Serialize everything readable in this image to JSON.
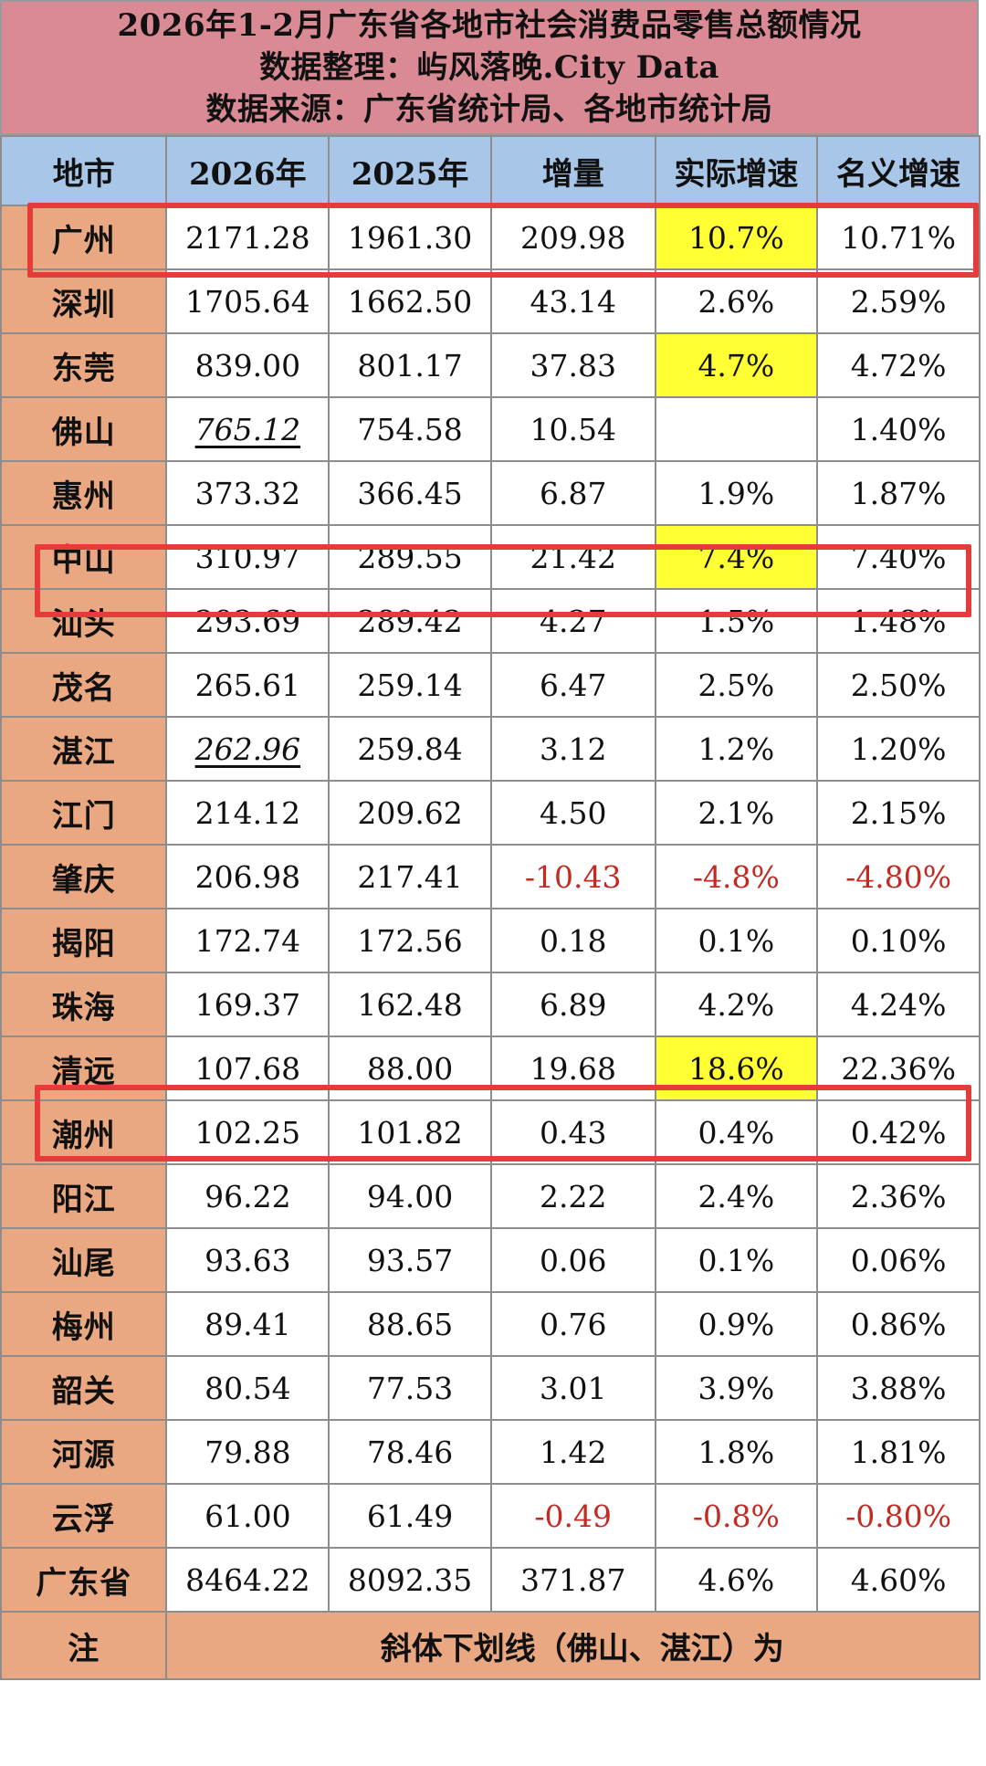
{
  "title": {
    "line1": "2026年1-2月广东省各地市社会消费品零售总额情况",
    "line2": "数据整理：屿风落晚.City Data",
    "line3": "数据来源：广东省统计局、各地市统计局"
  },
  "headers": [
    "地市",
    "2026年",
    "2025年",
    "增量",
    "实际增速",
    "名义增速"
  ],
  "rows": [
    {
      "city": "广州",
      "y2026": "2171.28",
      "y2025": "1961.30",
      "inc": "209.98",
      "real": "10.7%",
      "nominal": "10.71%"
    },
    {
      "city": "深圳",
      "y2026": "1705.64",
      "y2025": "1662.50",
      "inc": "43.14",
      "real": "2.6%",
      "nominal": "2.59%"
    },
    {
      "city": "东莞",
      "y2026": "839.00",
      "y2025": "801.17",
      "inc": "37.83",
      "real": "4.7%",
      "nominal": "4.72%"
    },
    {
      "city": "佛山",
      "y2026": "765.12",
      "y2025": "754.58",
      "inc": "10.54",
      "real": "",
      "nominal": "1.40%"
    },
    {
      "city": "惠州",
      "y2026": "373.32",
      "y2025": "366.45",
      "inc": "6.87",
      "real": "1.9%",
      "nominal": "1.87%"
    },
    {
      "city": "中山",
      "y2026": "310.97",
      "y2025": "289.55",
      "inc": "21.42",
      "real": "7.4%",
      "nominal": "7.40%"
    },
    {
      "city": "汕头",
      "y2026": "293.69",
      "y2025": "289.42",
      "inc": "4.27",
      "real": "1.5%",
      "nominal": "1.48%"
    },
    {
      "city": "茂名",
      "y2026": "265.61",
      "y2025": "259.14",
      "inc": "6.47",
      "real": "2.5%",
      "nominal": "2.50%"
    },
    {
      "city": "湛江",
      "y2026": "262.96",
      "y2025": "259.84",
      "inc": "3.12",
      "real": "1.2%",
      "nominal": "1.20%"
    },
    {
      "city": "江门",
      "y2026": "214.12",
      "y2025": "209.62",
      "inc": "4.50",
      "real": "2.1%",
      "nominal": "2.15%"
    },
    {
      "city": "肇庆",
      "y2026": "206.98",
      "y2025": "217.41",
      "inc": "-10.43",
      "real": "-4.8%",
      "nominal": "-4.80%"
    },
    {
      "city": "揭阳",
      "y2026": "172.74",
      "y2025": "172.56",
      "inc": "0.18",
      "real": "0.1%",
      "nominal": "0.10%"
    },
    {
      "city": "珠海",
      "y2026": "169.37",
      "y2025": "162.48",
      "inc": "6.89",
      "real": "4.2%",
      "nominal": "4.24%"
    },
    {
      "city": "清远",
      "y2026": "107.68",
      "y2025": "88.00",
      "inc": "19.68",
      "real": "18.6%",
      "nominal": "22.36%"
    },
    {
      "city": "潮州",
      "y2026": "102.25",
      "y2025": "101.82",
      "inc": "0.43",
      "real": "0.4%",
      "nominal": "0.42%"
    },
    {
      "city": "阳江",
      "y2026": "96.22",
      "y2025": "94.00",
      "inc": "2.22",
      "real": "2.4%",
      "nominal": "2.36%"
    },
    {
      "city": "汕尾",
      "y2026": "93.63",
      "y2025": "93.57",
      "inc": "0.06",
      "real": "0.1%",
      "nominal": "0.06%"
    },
    {
      "city": "梅州",
      "y2026": "89.41",
      "y2025": "88.65",
      "inc": "0.76",
      "real": "0.9%",
      "nominal": "0.86%"
    },
    {
      "city": "韶关",
      "y2026": "80.54",
      "y2025": "77.53",
      "inc": "3.01",
      "real": "3.9%",
      "nominal": "3.88%"
    },
    {
      "city": "河源",
      "y2026": "79.88",
      "y2025": "78.46",
      "inc": "1.42",
      "real": "1.8%",
      "nominal": "1.81%"
    },
    {
      "city": "云浮",
      "y2026": "61.00",
      "y2025": "61.49",
      "inc": "-0.49",
      "real": "-0.8%",
      "nominal": "-0.80%"
    }
  ],
  "total": {
    "city": "广东省",
    "y2026": "8464.22",
    "y2025": "8092.35",
    "inc": "371.87",
    "real": "4.6%",
    "nominal": "4.60%"
  },
  "note": {
    "label": "注",
    "text": "斜体下划线（佛山、湛江）为"
  },
  "colors": {
    "title_bg": "#d98a94",
    "header_bg": "#a8c6e8",
    "city_bg": "#e9a882",
    "highlight": "#ffff33",
    "negative": "#c22a22",
    "box": "#e63b3b"
  }
}
